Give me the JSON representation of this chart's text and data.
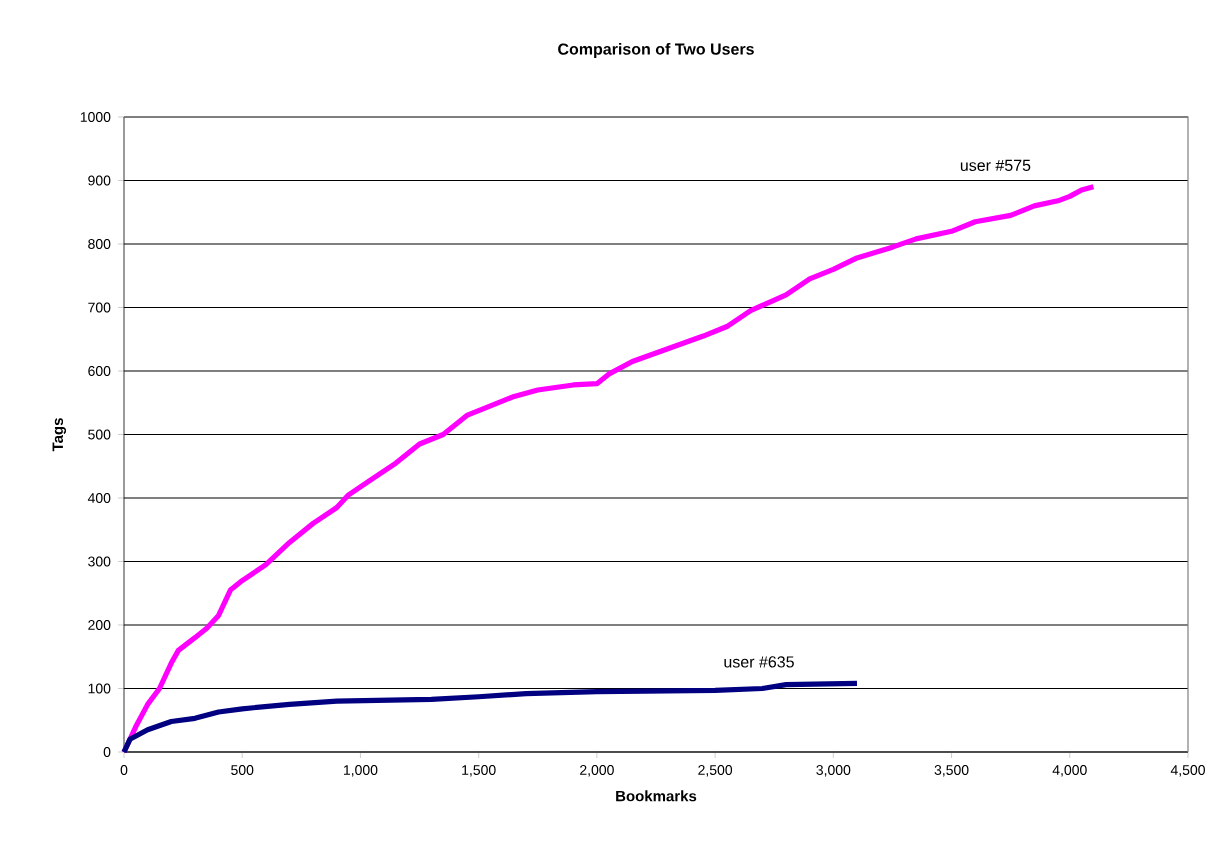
{
  "chart_data": {
    "type": "line",
    "title": "Comparison of Two Users",
    "xlabel": "Bookmarks",
    "ylabel": "Tags",
    "xlim": [
      0,
      4500
    ],
    "ylim": [
      0,
      1000
    ],
    "xticks": [
      0,
      {
        "value": 500,
        "label": "500"
      },
      {
        "value": 1000,
        "label": "1,000"
      },
      {
        "value": 1500,
        "label": "1,500"
      },
      {
        "value": 2000,
        "label": "2,000"
      },
      {
        "value": 2500,
        "label": "2,500"
      },
      {
        "value": 3000,
        "label": "3,000"
      },
      {
        "value": 3500,
        "label": "3,500"
      },
      {
        "value": 4000,
        "label": "4,000"
      },
      {
        "value": 4500,
        "label": "4,500"
      }
    ],
    "yticks": [
      0,
      100,
      200,
      300,
      400,
      500,
      600,
      700,
      800,
      900,
      1000
    ],
    "grid": "y",
    "legend": false,
    "marker": "none",
    "line_style": "solid",
    "series": [
      {
        "name": "user #575",
        "color": "#ff00ff",
        "x": [
          0,
          50,
          100,
          150,
          200,
          230,
          300,
          350,
          400,
          450,
          500,
          600,
          700,
          800,
          900,
          950,
          1050,
          1150,
          1250,
          1350,
          1450,
          1550,
          1650,
          1750,
          1900,
          2000,
          2050,
          2150,
          2300,
          2450,
          2550,
          2650,
          2800,
          2900,
          3000,
          3100,
          3250,
          3350,
          3500,
          3600,
          3750,
          3850,
          3950,
          4000,
          4050,
          4100
        ],
        "values": [
          0,
          40,
          75,
          100,
          140,
          160,
          180,
          195,
          215,
          255,
          270,
          295,
          330,
          360,
          385,
          405,
          430,
          455,
          485,
          500,
          530,
          545,
          560,
          570,
          578,
          580,
          595,
          615,
          635,
          655,
          670,
          695,
          720,
          745,
          760,
          778,
          795,
          808,
          820,
          835,
          845,
          860,
          868,
          875,
          885,
          890
        ]
      },
      {
        "name": "user #635",
        "color": "#000080",
        "x": [
          0,
          25,
          100,
          200,
          300,
          400,
          500,
          700,
          900,
          1300,
          1500,
          1700,
          2000,
          2500,
          2700,
          2800,
          3100
        ],
        "values": [
          0,
          20,
          35,
          48,
          53,
          63,
          68,
          75,
          80,
          83,
          87,
          92,
          95,
          97,
          100,
          106,
          108
        ]
      }
    ]
  }
}
